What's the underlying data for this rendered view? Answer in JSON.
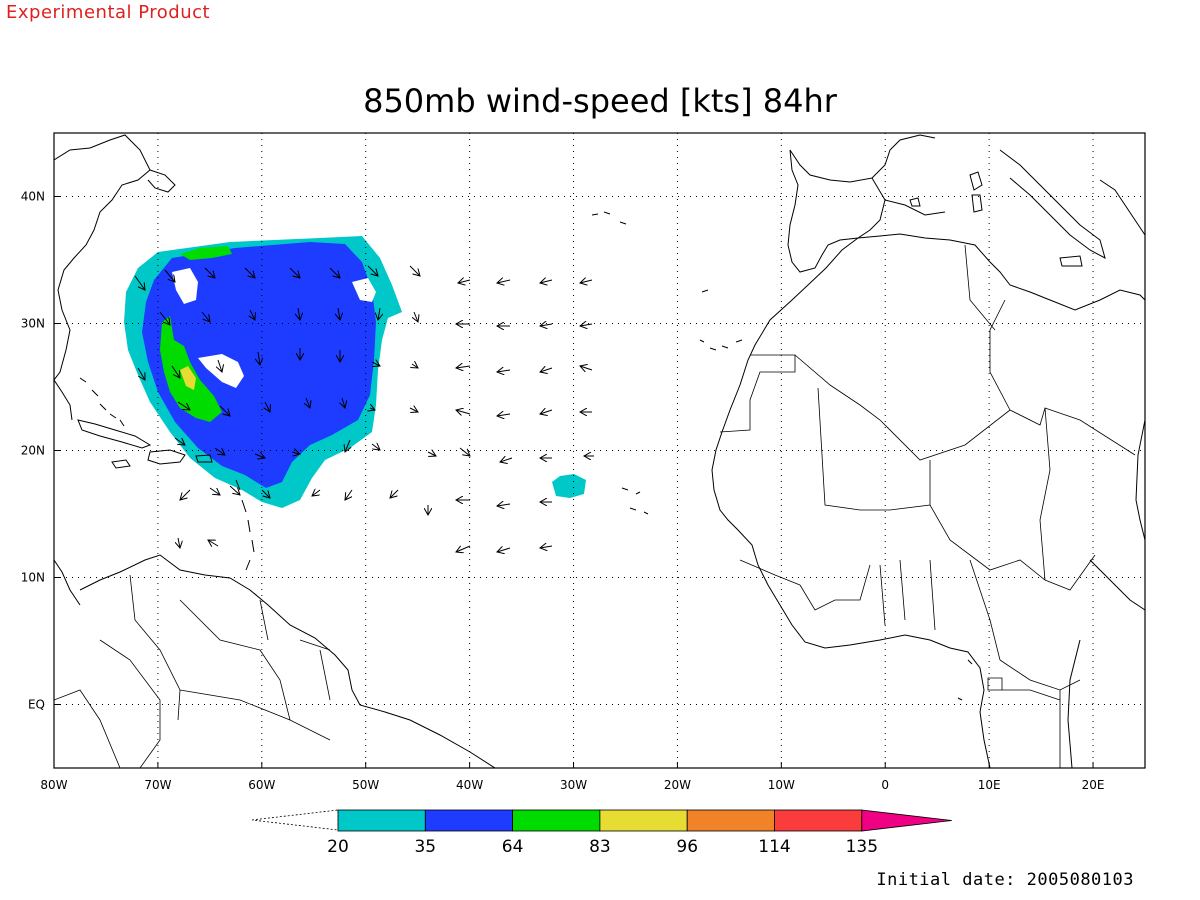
{
  "header": {
    "label": "Experimental Product"
  },
  "map": {
    "title": "850mb wind-speed [kts] 84hr",
    "lon_ticks": [
      "80W",
      "70W",
      "60W",
      "50W",
      "40W",
      "30W",
      "20W",
      "10W",
      "0",
      "10E",
      "20E"
    ],
    "lat_ticks": [
      "40N",
      "30N",
      "20N",
      "10N",
      "EQ"
    ],
    "lon_range": [
      -80,
      25
    ],
    "lat_range": [
      -5,
      45
    ],
    "grid": "dotted"
  },
  "colorbar": {
    "labels": [
      "20",
      "35",
      "64",
      "83",
      "96",
      "114",
      "135"
    ],
    "colors": [
      "#00c8c8",
      "#1e3cff",
      "#00dc00",
      "#e6dc32",
      "#f08228",
      "#fa3c3c",
      "#f00082"
    ],
    "min_arrow_color": "#ffffff"
  },
  "footer": {
    "initial_date": "Initial date: 2005080103"
  }
}
